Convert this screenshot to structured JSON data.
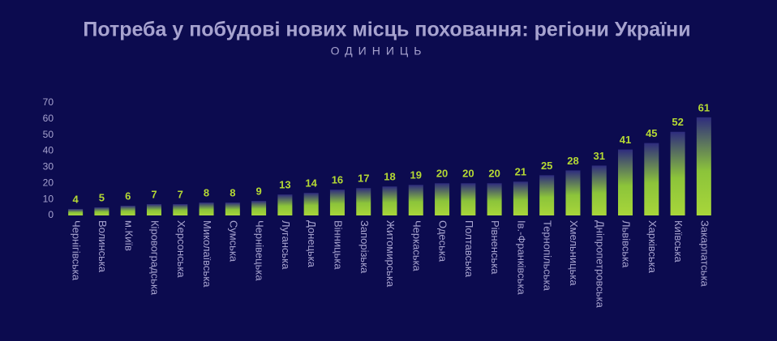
{
  "chart_data": {
    "type": "bar",
    "title": "Потреба у побудові нових місць поховання: регіони України",
    "subtitle": "ОДИНИЦЬ",
    "categories": [
      "Чернігівська",
      "Волинська",
      "м.Київ",
      "Кіровоградська",
      "Херсонська",
      "Миколаївська",
      "Сумська",
      "Чернівецька",
      "Луганська",
      "Донецька",
      "Вінницька",
      "Запорізька",
      "Житомирська",
      "Черкаська",
      "Одеська",
      "Полтавська",
      "Рівненська",
      "Ів.-Франківська",
      "Тернопільська",
      "Хмельницька",
      "Дніпропетровська",
      "Львівська",
      "Харківська",
      "Київська",
      "Закарпатська"
    ],
    "values": [
      4,
      5,
      6,
      7,
      7,
      8,
      8,
      9,
      13,
      14,
      16,
      17,
      18,
      19,
      20,
      20,
      20,
      21,
      25,
      28,
      31,
      41,
      45,
      52,
      61
    ],
    "color": "#a8d63a",
    "ylim": [
      0,
      70
    ],
    "yticks": [
      0,
      10,
      20,
      30,
      40,
      50,
      60,
      70
    ],
    "grid": false
  }
}
